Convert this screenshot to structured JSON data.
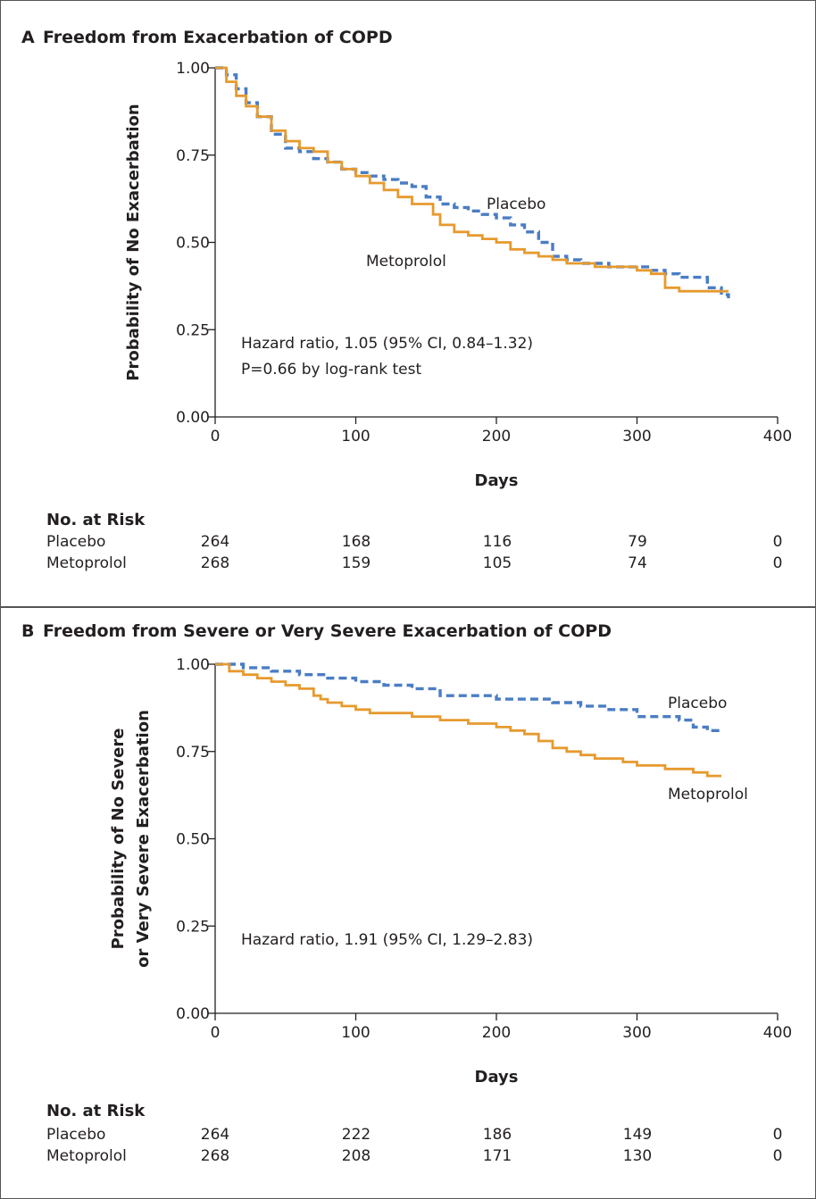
{
  "colors": {
    "placebo": "#4a7dc4",
    "metoprolol": "#e69a2e",
    "axis": "#231f20",
    "frame": "#555555"
  },
  "chart_data": [
    {
      "type": "line",
      "panel_letter": "A",
      "title": "Freedom from Exacerbation of COPD",
      "xlabel": "Days",
      "ylabel_lines": [
        "Probability of No Exacerbation"
      ],
      "xlim": [
        0,
        400
      ],
      "ylim": [
        0,
        1
      ],
      "x_ticks": [
        0,
        100,
        200,
        300,
        400
      ],
      "x_tick_labels": [
        "0",
        "100",
        "200",
        "300",
        "400"
      ],
      "y_ticks": [
        0,
        0.25,
        0.5,
        0.75,
        1
      ],
      "y_tick_labels": [
        "0.00",
        "0.25",
        "0.50",
        "0.75",
        "1.00"
      ],
      "grid": false,
      "annotations": [
        "Hazard ratio, 1.05 (95% CI, 0.84–1.32)",
        "P=0.66 by log-rank test"
      ],
      "series": [
        {
          "name": "Placebo",
          "style": "dashed",
          "x": [
            0,
            8,
            15,
            22,
            30,
            40,
            50,
            60,
            70,
            80,
            90,
            100,
            110,
            120,
            130,
            140,
            150,
            160,
            170,
            180,
            190,
            200,
            210,
            220,
            230,
            240,
            250,
            260,
            270,
            280,
            290,
            300,
            310,
            320,
            330,
            340,
            350,
            360,
            365
          ],
          "y": [
            1.0,
            0.98,
            0.94,
            0.9,
            0.86,
            0.81,
            0.77,
            0.76,
            0.74,
            0.73,
            0.71,
            0.7,
            0.69,
            0.68,
            0.67,
            0.66,
            0.63,
            0.61,
            0.6,
            0.59,
            0.58,
            0.57,
            0.55,
            0.53,
            0.5,
            0.46,
            0.45,
            0.44,
            0.44,
            0.43,
            0.43,
            0.43,
            0.42,
            0.41,
            0.4,
            0.4,
            0.37,
            0.35,
            0.34
          ]
        },
        {
          "name": "Metoprolol",
          "style": "solid",
          "x": [
            0,
            8,
            15,
            22,
            30,
            40,
            50,
            60,
            70,
            80,
            90,
            100,
            110,
            120,
            130,
            140,
            150,
            155,
            160,
            170,
            180,
            190,
            200,
            210,
            220,
            230,
            240,
            250,
            260,
            270,
            280,
            290,
            300,
            310,
            315,
            320,
            330,
            340,
            350,
            360,
            365
          ],
          "y": [
            1.0,
            0.96,
            0.92,
            0.89,
            0.86,
            0.82,
            0.79,
            0.77,
            0.76,
            0.73,
            0.71,
            0.69,
            0.67,
            0.65,
            0.63,
            0.61,
            0.61,
            0.58,
            0.55,
            0.53,
            0.52,
            0.51,
            0.5,
            0.48,
            0.47,
            0.46,
            0.45,
            0.44,
            0.44,
            0.43,
            0.43,
            0.43,
            0.42,
            0.41,
            0.41,
            0.37,
            0.36,
            0.36,
            0.36,
            0.36,
            0.36
          ]
        }
      ],
      "risk_table": {
        "heading": "No. at Risk",
        "rows": [
          {
            "label": "Placebo",
            "values": [
              "264",
              "168",
              "116",
              "79",
              "0"
            ]
          },
          {
            "label": "Metoprolol",
            "values": [
              "268",
              "159",
              "105",
              "74",
              "0"
            ]
          }
        ]
      }
    },
    {
      "type": "line",
      "panel_letter": "B",
      "title": "Freedom from Severe or Very Severe Exacerbation of COPD",
      "xlabel": "Days",
      "ylabel_lines": [
        "Probability of No Severe",
        "or Very Severe Exacerbation"
      ],
      "xlim": [
        0,
        400
      ],
      "ylim": [
        0,
        1
      ],
      "x_ticks": [
        0,
        100,
        200,
        300,
        400
      ],
      "x_tick_labels": [
        "0",
        "100",
        "200",
        "300",
        "400"
      ],
      "y_ticks": [
        0,
        0.25,
        0.5,
        0.75,
        1
      ],
      "y_tick_labels": [
        "0.00",
        "0.25",
        "0.50",
        "0.75",
        "1.00"
      ],
      "grid": false,
      "annotations": [
        "Hazard ratio, 1.91 (95% CI, 1.29–2.83)"
      ],
      "series": [
        {
          "name": "Placebo",
          "style": "dashed",
          "x": [
            0,
            20,
            40,
            60,
            80,
            100,
            120,
            140,
            160,
            180,
            200,
            220,
            240,
            260,
            280,
            300,
            320,
            330,
            335,
            340,
            345,
            350,
            360
          ],
          "y": [
            1.0,
            0.99,
            0.98,
            0.97,
            0.96,
            0.95,
            0.94,
            0.93,
            0.91,
            0.91,
            0.9,
            0.9,
            0.89,
            0.88,
            0.87,
            0.85,
            0.85,
            0.84,
            0.84,
            0.82,
            0.82,
            0.81,
            0.81
          ]
        },
        {
          "name": "Metoprolol",
          "style": "solid",
          "x": [
            0,
            10,
            20,
            30,
            40,
            50,
            60,
            70,
            75,
            80,
            90,
            100,
            110,
            120,
            140,
            160,
            180,
            200,
            210,
            220,
            230,
            240,
            250,
            260,
            270,
            280,
            290,
            300,
            310,
            320,
            330,
            340,
            350,
            360
          ],
          "y": [
            1.0,
            0.98,
            0.97,
            0.96,
            0.95,
            0.94,
            0.93,
            0.91,
            0.9,
            0.89,
            0.88,
            0.87,
            0.86,
            0.86,
            0.85,
            0.84,
            0.83,
            0.82,
            0.81,
            0.8,
            0.78,
            0.76,
            0.75,
            0.74,
            0.73,
            0.73,
            0.72,
            0.71,
            0.71,
            0.7,
            0.7,
            0.69,
            0.68,
            0.68
          ]
        }
      ],
      "risk_table": {
        "heading": "No. at Risk",
        "rows": [
          {
            "label": "Placebo",
            "values": [
              "264",
              "222",
              "186",
              "149",
              "0"
            ]
          },
          {
            "label": "Metoprolol",
            "values": [
              "268",
              "208",
              "171",
              "130",
              "0"
            ]
          }
        ]
      }
    }
  ]
}
